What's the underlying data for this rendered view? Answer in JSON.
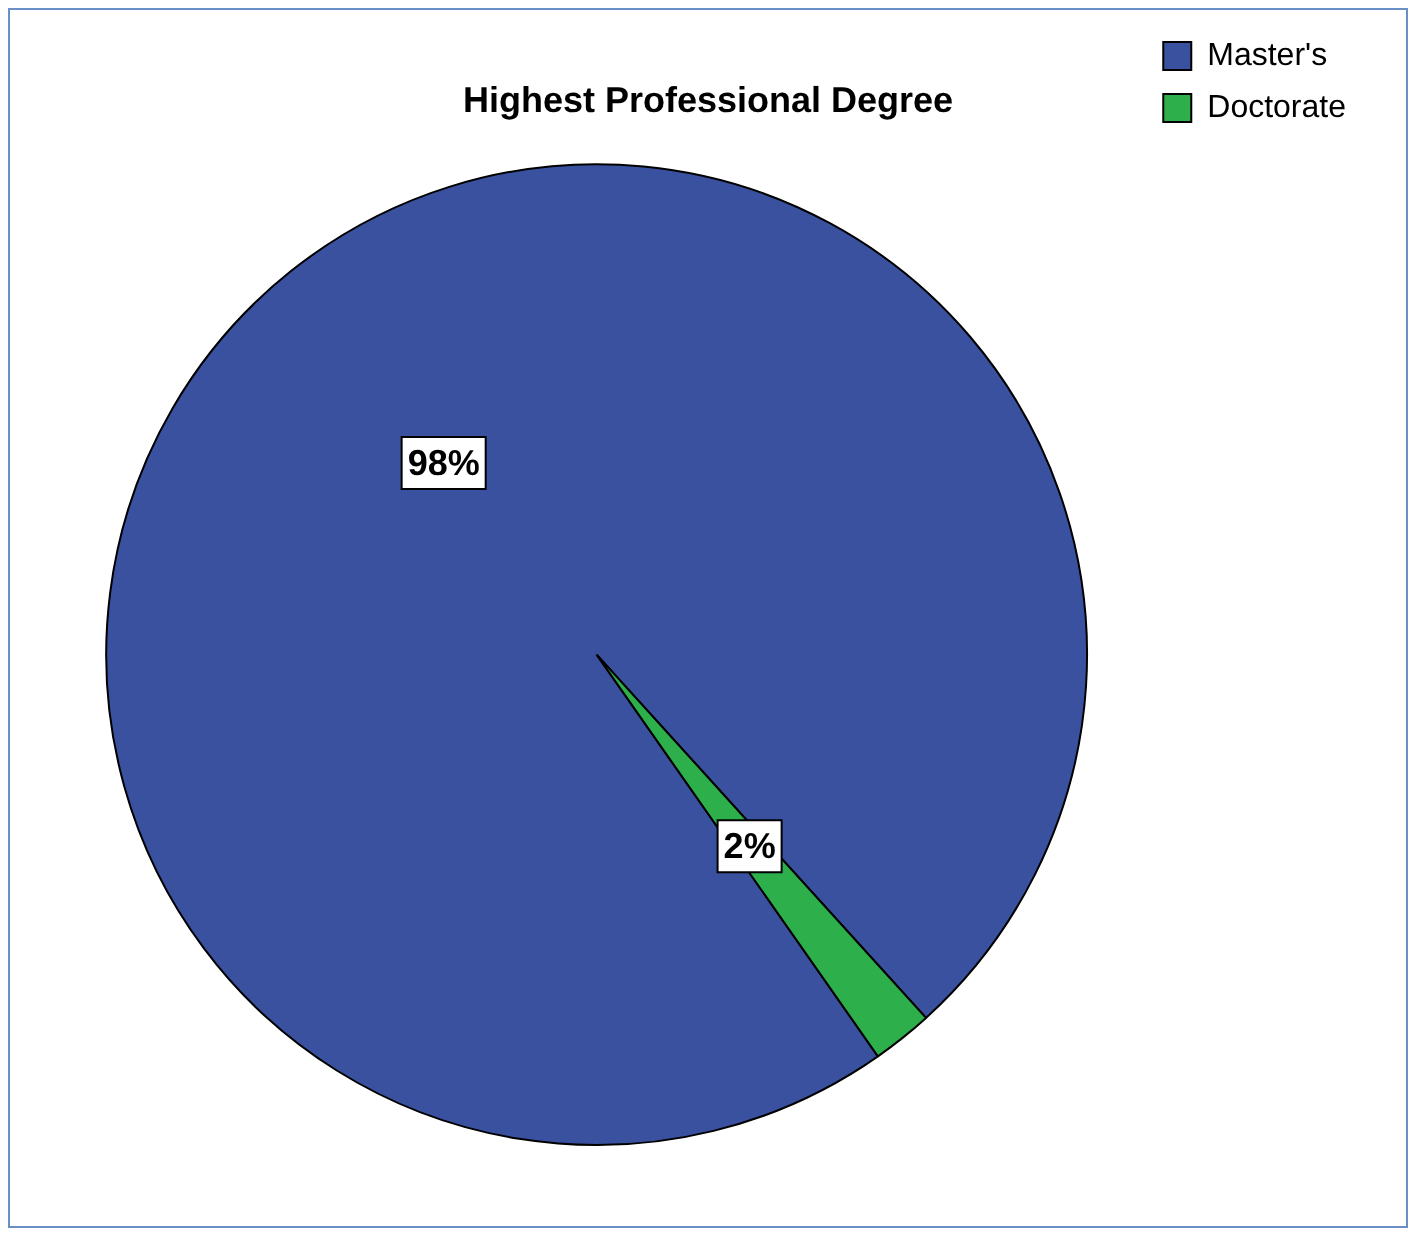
{
  "chart_data": {
    "type": "pie",
    "title": "Highest Professional Degree",
    "categories": [
      "Master's",
      "Doctorate"
    ],
    "values": [
      98,
      2
    ],
    "colors": [
      "#3a51a0",
      "#2db04b"
    ],
    "value_labels": [
      "98%",
      "2%"
    ],
    "legend": "top right"
  }
}
